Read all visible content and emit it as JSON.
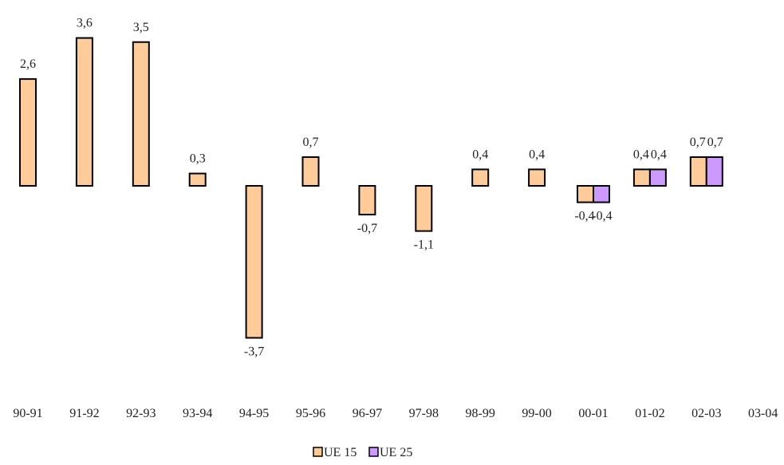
{
  "chart_data": {
    "type": "bar",
    "categories": [
      "90-91",
      "91-92",
      "92-93",
      "93-94",
      "94-95",
      "95-96",
      "96-97",
      "97-98",
      "98-99",
      "99-00",
      "00-01",
      "01-02",
      "02-03",
      "03-04"
    ],
    "series": [
      {
        "name": "UE 15",
        "color": "#FFCC99",
        "values": [
          2.6,
          3.6,
          3.5,
          0.3,
          -3.7,
          0.7,
          -0.7,
          -1.1,
          0.4,
          0.4,
          -0.4,
          0.4,
          0.7,
          null
        ],
        "value_labels": [
          "2,6",
          "3,6",
          "3,5",
          "0,3",
          "-3,7",
          "0,7",
          "-0,7",
          "-1,1",
          "0,4",
          "0,4",
          "-0,4",
          "0,4",
          "0,7",
          ""
        ]
      },
      {
        "name": "UE 25",
        "color": "#CC99FF",
        "values": [
          null,
          null,
          null,
          null,
          null,
          null,
          null,
          null,
          null,
          null,
          -0.4,
          0.4,
          0.7,
          null
        ],
        "value_labels": [
          "",
          "",
          "",
          "",
          "",
          "",
          "",
          "",
          "",
          "",
          "-0,4",
          "0,4",
          "0,7",
          ""
        ]
      }
    ],
    "legend_position": "bottom-center",
    "grid": false
  }
}
